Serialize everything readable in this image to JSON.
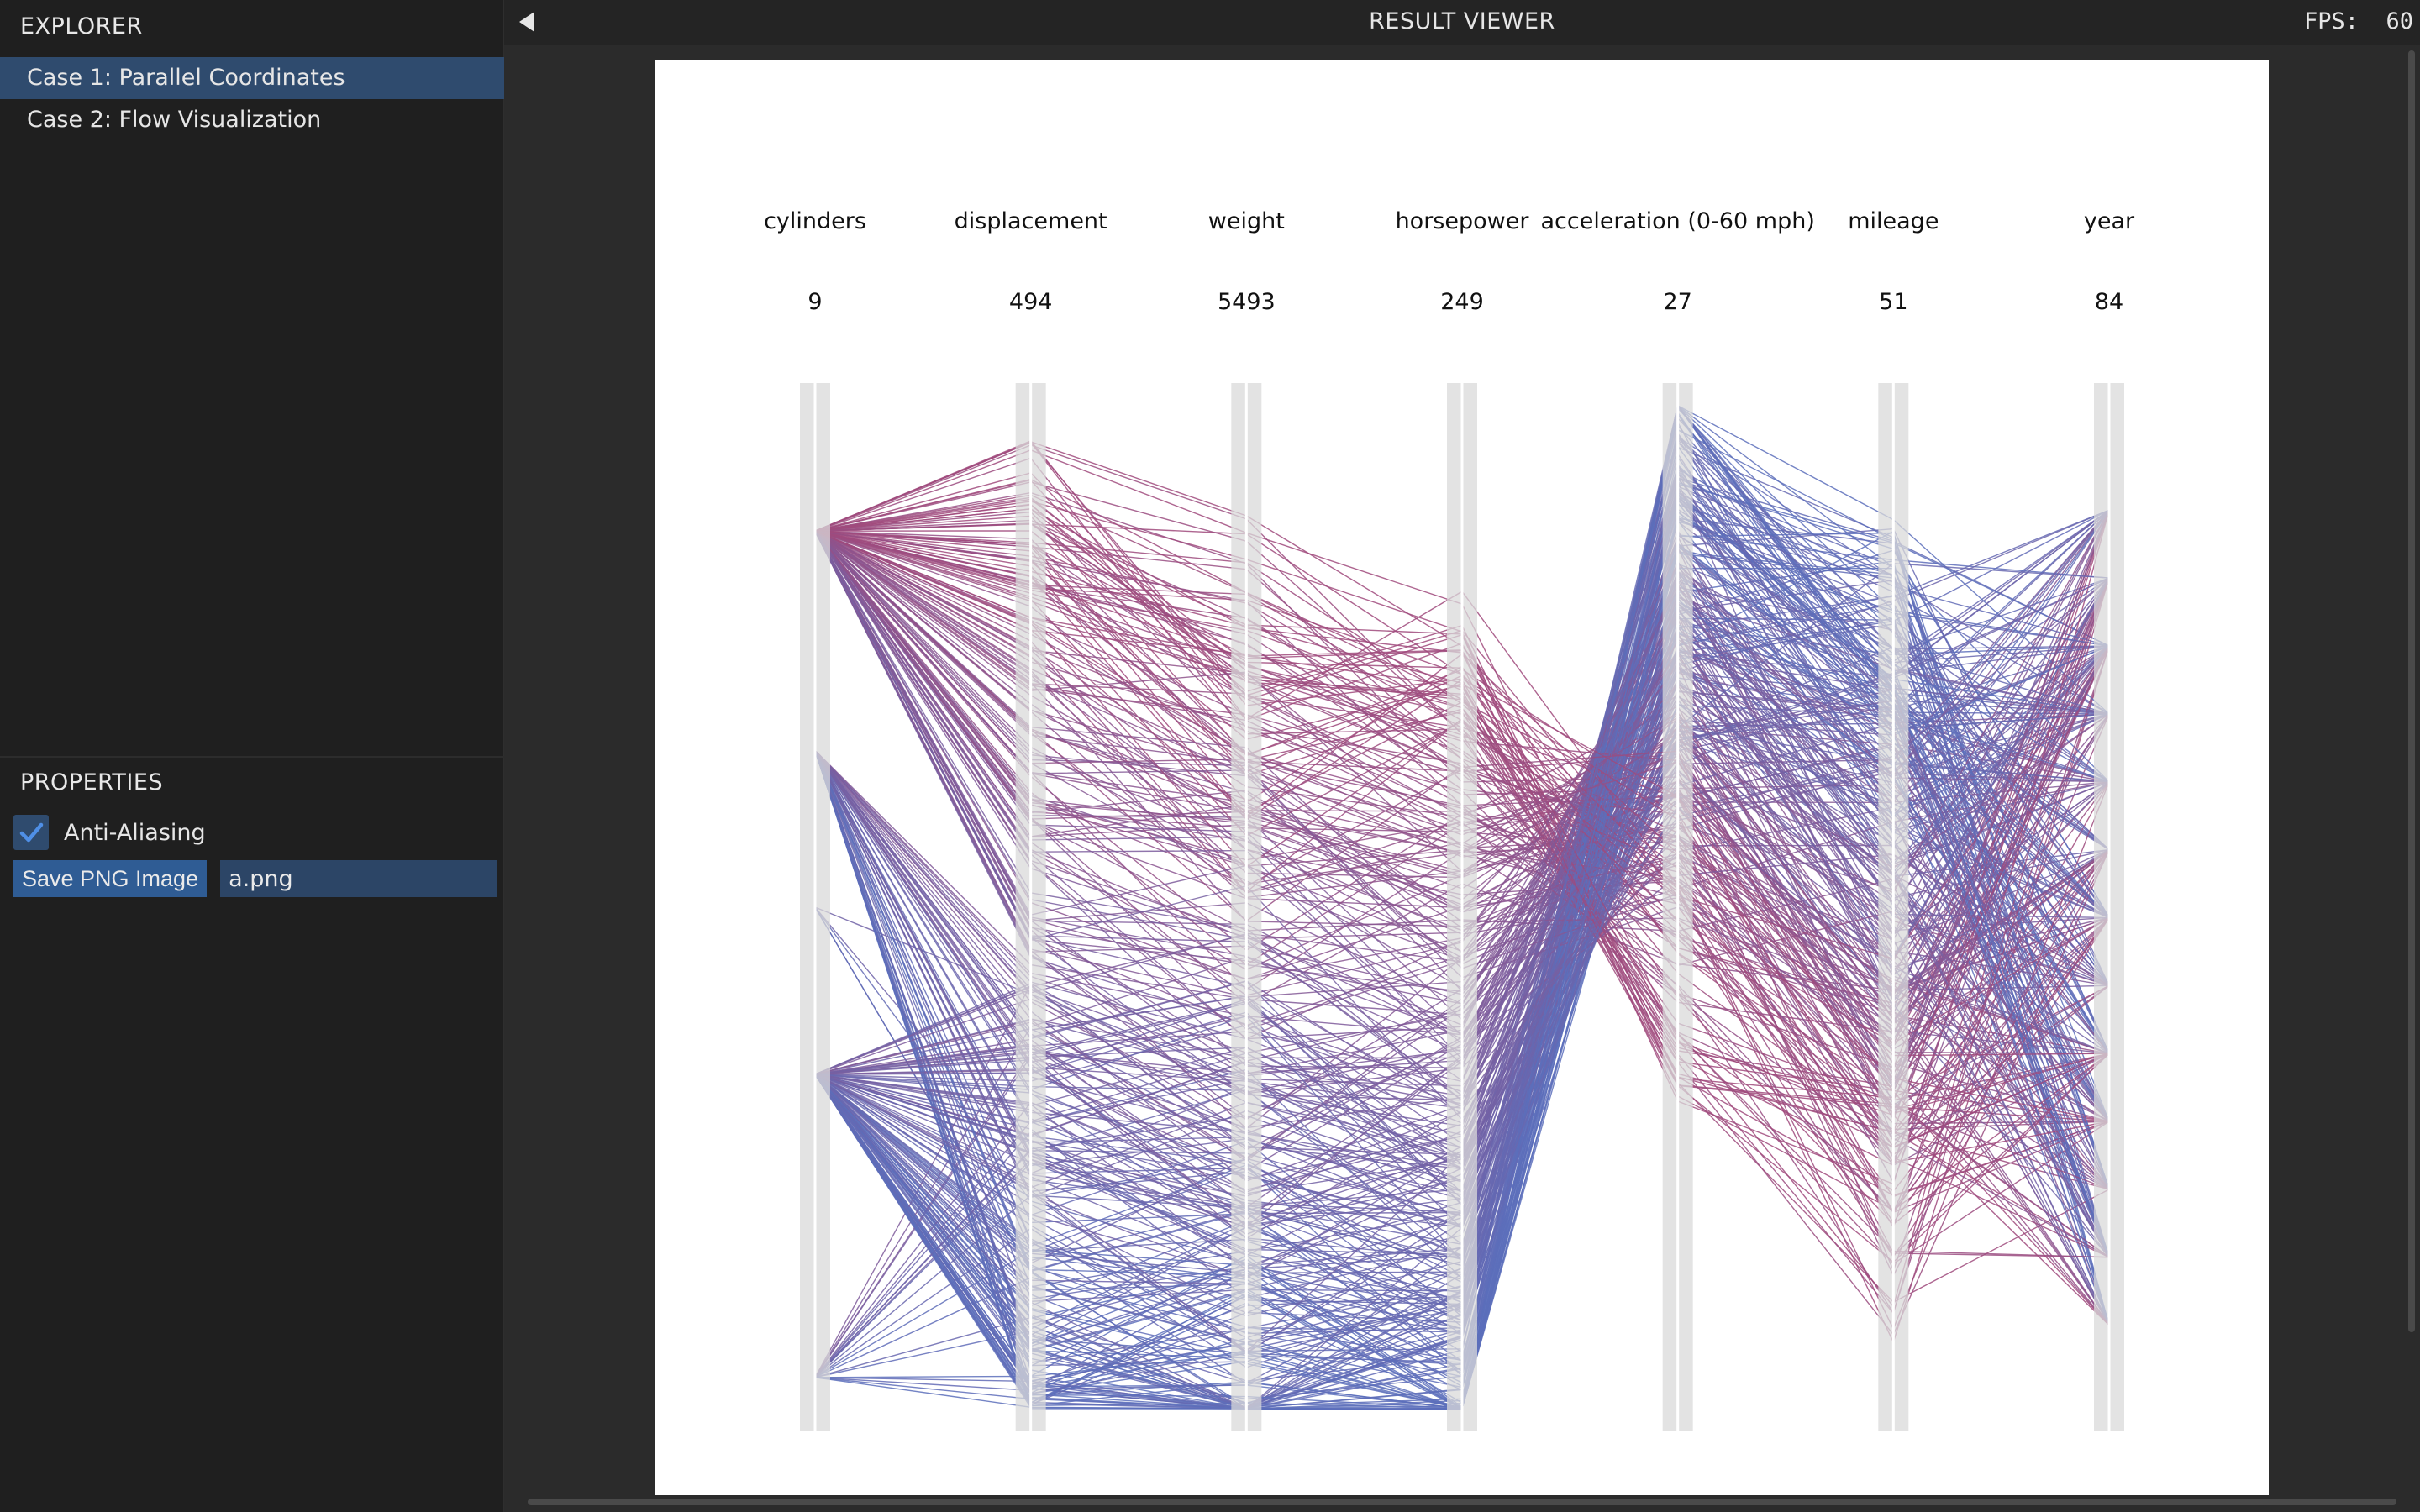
{
  "explorer": {
    "title": "EXPLORER",
    "items": [
      {
        "label": "Case 1: Parallel Coordinates",
        "selected": true
      },
      {
        "label": "Case 2: Flow Visualization",
        "selected": false
      }
    ]
  },
  "properties": {
    "title": "PROPERTIES",
    "anti_aliasing": {
      "label": "Anti-Aliasing",
      "checked": true
    },
    "save_button": "Save PNG Image",
    "filename": "a.png"
  },
  "viewer": {
    "title": "RESULT VIEWER",
    "fps_label": "FPS:",
    "fps_value": "60"
  },
  "colors": {
    "low": "#5a6fbd",
    "high": "#a04a7c",
    "selection": "#2f4b6e",
    "axis": "#d9d9d9"
  },
  "chart_data": {
    "type": "parallel_coordinates",
    "axes": [
      {
        "label": "cylinders",
        "max": 9
      },
      {
        "label": "displacement",
        "max": 494
      },
      {
        "label": "weight",
        "max": 5493
      },
      {
        "label": "horsepower",
        "max": 249
      },
      {
        "label": "acceleration (0-60 mph)",
        "max": 27
      },
      {
        "label": "mileage",
        "max": 51
      },
      {
        "label": "year",
        "max": 84
      }
    ]
  }
}
